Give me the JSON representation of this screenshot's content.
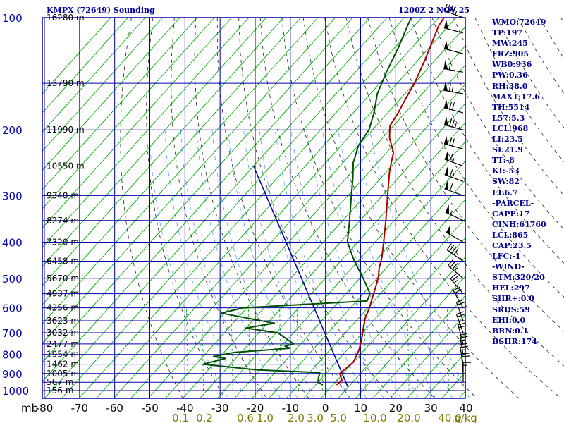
{
  "header": {
    "title": "KMPX (72649) Sounding",
    "time": "1200Z  2 NOV 25"
  },
  "indices": [
    "WMO:72649",
    "TP:197",
    "MW:245",
    "FRZ:905",
    "WB0:936",
    "PW:0.36",
    "RH:38.0",
    "MAXT:17.6",
    "TH:5514",
    "L57:5.3",
    "LCL:968",
    "LI:23.5",
    "SI:21.9",
    "TT:-8",
    "KI:-53",
    "SW:82",
    "EI:6.7",
    "-PARCEL-",
    "CAPE:17",
    "CINH:61760",
    "LCL:865",
    "CAP:23.5",
    "LFC:-1",
    "-WIND-",
    "STM:320/20",
    "HEL:297",
    "SHR+:0.0",
    "SRDS:59",
    "EHI:0.0",
    "BRN:0.1",
    "BSHR:174"
  ],
  "colors": {
    "frame": "#0000aa",
    "isotherm": "#00aa00",
    "mixing_ratio": "#00aa00",
    "dry_adiabat": "#202020",
    "moist_adiabat": "#5a9bff",
    "temperature": "#b00000",
    "dewpoint": "#005000",
    "parcel": "#0000aa",
    "wind": "#000000",
    "mixing_label": "#7b7b00"
  },
  "chart_data": {
    "type": "skew-t",
    "pressure_unit": "mb",
    "temperature_unit": "°C",
    "pressure_ticks": [
      100,
      200,
      300,
      400,
      500,
      600,
      700,
      800,
      900,
      1000
    ],
    "temperature_ticks": [
      -80,
      -70,
      -60,
      -50,
      -40,
      -30,
      -20,
      -10,
      0,
      10,
      20,
      30,
      40
    ],
    "pressure_axis_label": "mb",
    "mixing_ratio_labels": [
      "0.1",
      "0.2",
      "0.6",
      "1.0",
      "2.0",
      "3.0",
      "5.0",
      "10.0",
      "20.0",
      "40.0"
    ],
    "mixing_ratio_unit": "g/kg",
    "height_labels": [
      {
        "p": 100,
        "label": "16280 m"
      },
      {
        "p": 150,
        "label": "13790 m"
      },
      {
        "p": 200,
        "label": "11990 m"
      },
      {
        "p": 250,
        "label": "10550 m"
      },
      {
        "p": 300,
        "label": "9340 m"
      },
      {
        "p": 350,
        "label": "8274 m"
      },
      {
        "p": 400,
        "label": "7320 m"
      },
      {
        "p": 450,
        "label": "6458 m"
      },
      {
        "p": 500,
        "label": "5670 m"
      },
      {
        "p": 550,
        "label": "4937 m"
      },
      {
        "p": 600,
        "label": "4256 m"
      },
      {
        "p": 650,
        "label": "3623 m"
      },
      {
        "p": 700,
        "label": "3032 m"
      },
      {
        "p": 750,
        "label": "2477 m"
      },
      {
        "p": 800,
        "label": "1954 m"
      },
      {
        "p": 850,
        "label": "1462 m"
      },
      {
        "p": 900,
        "label": "1005 m"
      },
      {
        "p": 950,
        "label": "567 m"
      },
      {
        "p": 1000,
        "label": "156 m"
      }
    ],
    "temperature_profile": [
      [
        965,
        1.0
      ],
      [
        940,
        1.5
      ],
      [
        900,
        -1.0
      ],
      [
        870,
        -0.5
      ],
      [
        840,
        0.0
      ],
      [
        780,
        -1.5
      ],
      [
        730,
        -3.5
      ],
      [
        680,
        -6.0
      ],
      [
        640,
        -8.0
      ],
      [
        600,
        -9.5
      ],
      [
        560,
        -11.5
      ],
      [
        530,
        -13.0
      ],
      [
        495,
        -15.0
      ],
      [
        470,
        -17.0
      ],
      [
        440,
        -19.0
      ],
      [
        400,
        -22.5
      ],
      [
        350,
        -27.5
      ],
      [
        300,
        -33.5
      ],
      [
        260,
        -39.0
      ],
      [
        245,
        -41.0
      ],
      [
        230,
        -43.0
      ],
      [
        210,
        -48.0
      ],
      [
        195,
        -51.0
      ],
      [
        180,
        -52.0
      ],
      [
        170,
        -53.0
      ],
      [
        160,
        -54.0
      ],
      [
        150,
        -55.0
      ],
      [
        130,
        -58.0
      ],
      [
        105,
        -63.0
      ],
      [
        100,
        -63.5
      ]
    ],
    "dewpoint_profile": [
      [
        965,
        -3.0
      ],
      [
        950,
        -5.0
      ],
      [
        925,
        -6.0
      ],
      [
        895,
        -7.0
      ],
      [
        880,
        -26.0
      ],
      [
        850,
        -43.0
      ],
      [
        820,
        -38.0
      ],
      [
        810,
        -42.0
      ],
      [
        790,
        -37.0
      ],
      [
        770,
        -22.0
      ],
      [
        760,
        -24.0
      ],
      [
        750,
        -22.0
      ],
      [
        700,
        -29.5
      ],
      [
        680,
        -40.0
      ],
      [
        660,
        -33.0
      ],
      [
        620,
        -51.0
      ],
      [
        600,
        -46.0
      ],
      [
        575,
        -12.0
      ],
      [
        550,
        -13.0
      ],
      [
        500,
        -19.0
      ],
      [
        450,
        -26.0
      ],
      [
        400,
        -33.0
      ],
      [
        350,
        -38.0
      ],
      [
        300,
        -44.0
      ],
      [
        270,
        -48.0
      ],
      [
        245,
        -52.0
      ],
      [
        220,
        -55.0
      ],
      [
        200,
        -56.0
      ],
      [
        180,
        -59.0
      ],
      [
        160,
        -63.0
      ],
      [
        140,
        -66.0
      ],
      [
        120,
        -69.0
      ],
      [
        105,
        -72.0
      ],
      [
        100,
        -73.0
      ]
    ],
    "parcel_path": [
      [
        980,
        5.0
      ],
      [
        250,
        -80.0
      ]
    ],
    "mixing_ratio_lines": [
      {
        "label": "0.1",
        "t1000": -40.5
      },
      {
        "label": "0.2",
        "t1000": -36.0
      },
      {
        "label": "0.6",
        "t1000": -27.5
      },
      {
        "label": "1.0",
        "t1000": -22.5
      },
      {
        "label": "2.0",
        "t1000": -13.5
      },
      {
        "label": "3.0",
        "t1000": -8.5
      },
      {
        "label": "5.0",
        "t1000": -1.5
      },
      {
        "label": "10.0",
        "t1000": 11.0
      },
      {
        "label": "20.0",
        "t1000": 23.5
      },
      {
        "label": "40.0",
        "t1000": 35.0
      }
    ],
    "winds": [
      {
        "p": 100,
        "dir": 290,
        "spd": 45
      },
      {
        "p": 110,
        "dir": 285,
        "spd": 50
      },
      {
        "p": 125,
        "dir": 285,
        "spd": 55
      },
      {
        "p": 140,
        "dir": 280,
        "spd": 60
      },
      {
        "p": 160,
        "dir": 280,
        "spd": 65
      },
      {
        "p": 180,
        "dir": 285,
        "spd": 70
      },
      {
        "p": 200,
        "dir": 285,
        "spd": 75
      },
      {
        "p": 225,
        "dir": 285,
        "spd": 70
      },
      {
        "p": 250,
        "dir": 290,
        "spd": 65
      },
      {
        "p": 275,
        "dir": 290,
        "spd": 65
      },
      {
        "p": 300,
        "dir": 290,
        "spd": 60
      },
      {
        "p": 350,
        "dir": 295,
        "spd": 55
      },
      {
        "p": 400,
        "dir": 300,
        "spd": 50
      },
      {
        "p": 450,
        "dir": 305,
        "spd": 40
      },
      {
        "p": 500,
        "dir": 310,
        "spd": 35
      },
      {
        "p": 550,
        "dir": 320,
        "spd": 25
      },
      {
        "p": 600,
        "dir": 330,
        "spd": 20
      },
      {
        "p": 650,
        "dir": 340,
        "spd": 20
      },
      {
        "p": 700,
        "dir": 340,
        "spd": 20
      },
      {
        "p": 750,
        "dir": 345,
        "spd": 20
      },
      {
        "p": 800,
        "dir": 350,
        "spd": 25
      },
      {
        "p": 850,
        "dir": 350,
        "spd": 25
      },
      {
        "p": 900,
        "dir": 355,
        "spd": 20
      },
      {
        "p": 950,
        "dir": 360,
        "spd": 15
      }
    ]
  }
}
